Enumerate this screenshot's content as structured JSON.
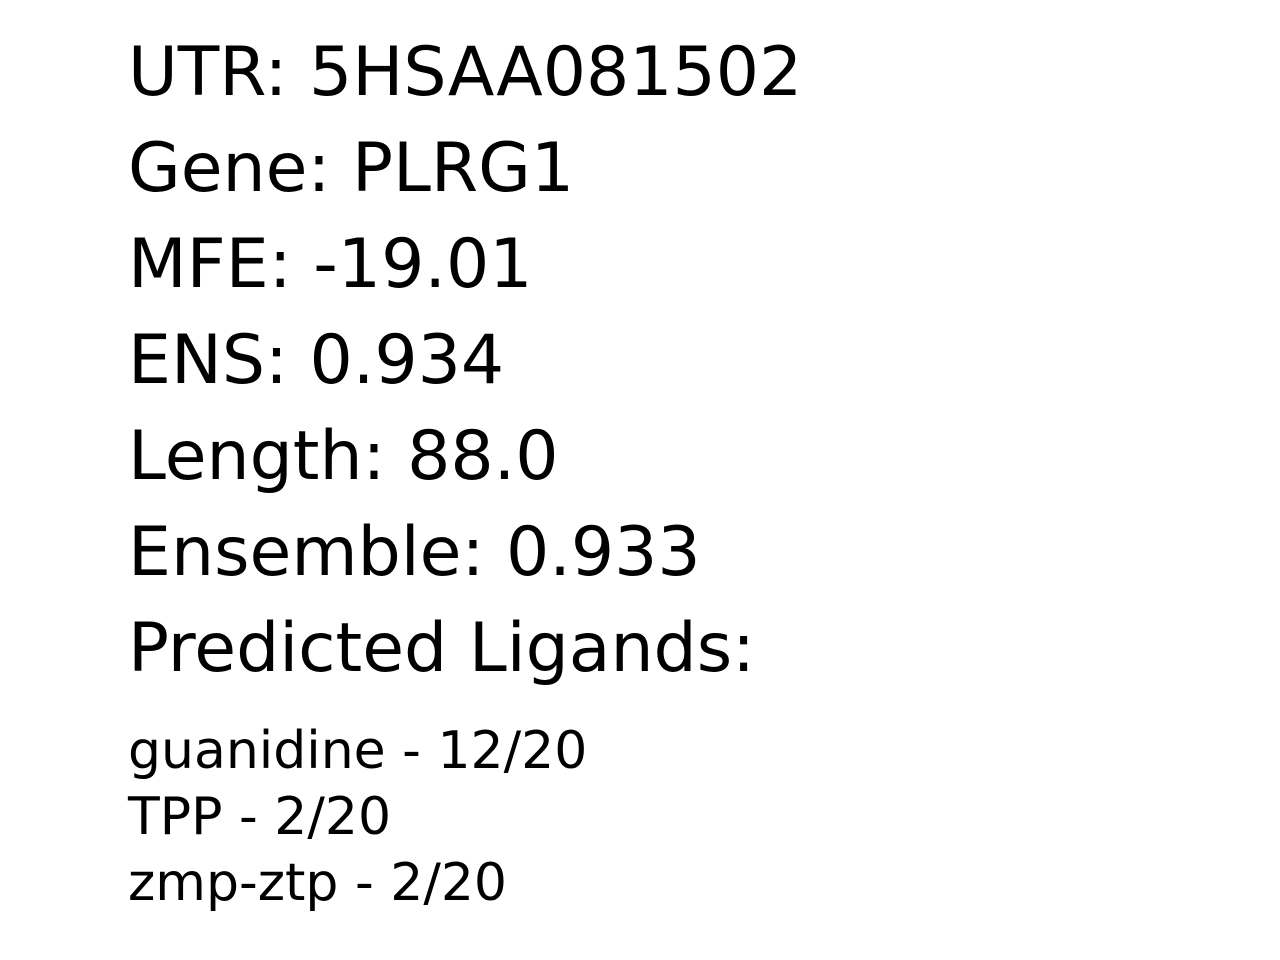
{
  "record": {
    "utr": "UTR: 5HSAA081502",
    "gene": "Gene: PLRG1",
    "mfe": "MFE: -19.01",
    "ens": "ENS: 0.934",
    "length": "Length: 88.0",
    "ensemble": "Ensemble: 0.933",
    "ligands_heading": "Predicted Ligands:"
  },
  "ligands": [
    "guanidine - 12/20",
    "TPP - 2/20",
    "zmp-ztp - 2/20"
  ]
}
